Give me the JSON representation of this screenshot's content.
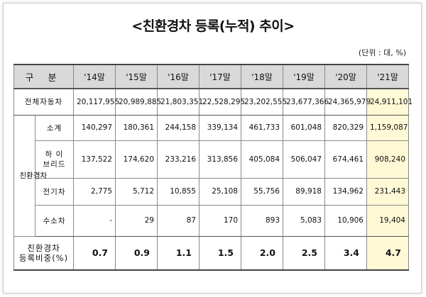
{
  "title": "<친환경차 등록(누적) 추이>",
  "unit": "(단위 : 대, %)",
  "table": {
    "header_label": "구 분",
    "years": [
      "'14말",
      "'15말",
      "'16말",
      "'17말",
      "'18말",
      "'19말",
      "'20말",
      "'21말"
    ],
    "total": {
      "label": "전체자동차",
      "values": [
        "20,117,955",
        "20,989,885",
        "21,803,351",
        "22,528,295",
        "23,202,555",
        "23,677,366",
        "24,365,979",
        "24,911,101"
      ]
    },
    "group_label": "친환경차",
    "rows": [
      {
        "label": "소계",
        "values": [
          "140,297",
          "180,361",
          "244,158",
          "339,134",
          "461,733",
          "601,048",
          "820,329",
          "1,159,087"
        ]
      },
      {
        "label_line1": "하 이",
        "label_line2": "브리드",
        "values": [
          "137,522",
          "174,620",
          "233,216",
          "313,856",
          "405,084",
          "506,047",
          "674,461",
          "908,240"
        ]
      },
      {
        "label": "전기차",
        "values": [
          "2,775",
          "5,712",
          "10,855",
          "25,108",
          "55,756",
          "89,918",
          "134,962",
          "231,443"
        ]
      },
      {
        "label": "수소차",
        "values": [
          "-",
          "29",
          "87",
          "170",
          "893",
          "5,083",
          "10,906",
          "19,404"
        ]
      }
    ],
    "ratio": {
      "label_line1": "친환경차",
      "label_line2": "등록비중(%)",
      "values": [
        "0.7",
        "0.9",
        "1.1",
        "1.5",
        "2.0",
        "2.5",
        "3.4",
        "4.7"
      ]
    }
  }
}
